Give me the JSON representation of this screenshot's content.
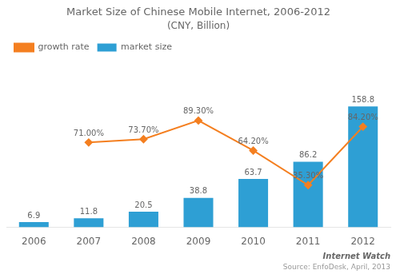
{
  "chart_data": {
    "type": "bar",
    "title": "Market Size of Chinese Mobile Internet, 2006-2012",
    "subtitle": "(CNY, Billion)",
    "categories": [
      "2006",
      "2007",
      "2008",
      "2009",
      "2010",
      "2011",
      "2012"
    ],
    "series": [
      {
        "name": "market size",
        "color": "#2e9fd4",
        "values": [
          6.9,
          11.8,
          20.5,
          38.8,
          63.7,
          86.2,
          158.8
        ]
      },
      {
        "name": "growth rate",
        "type": "line",
        "axis": "y2",
        "color": "#f47f20",
        "marker": "diamond",
        "values": [
          null,
          71.0,
          73.7,
          89.3,
          64.2,
          35.3,
          84.2
        ],
        "value_labels": [
          null,
          "71.00%",
          "73.70%",
          "89.30%",
          "64.20%",
          "35.30%",
          "84.20%"
        ]
      }
    ],
    "ylim": [
      0,
      220
    ],
    "y2lim": [
      0,
      140
    ],
    "grid": false,
    "legend": "upper left",
    "data_labels": true,
    "tick_labels": "x",
    "annotations": [
      "Internet Watch",
      "Source: EnfoDesk, April, 2013"
    ]
  }
}
